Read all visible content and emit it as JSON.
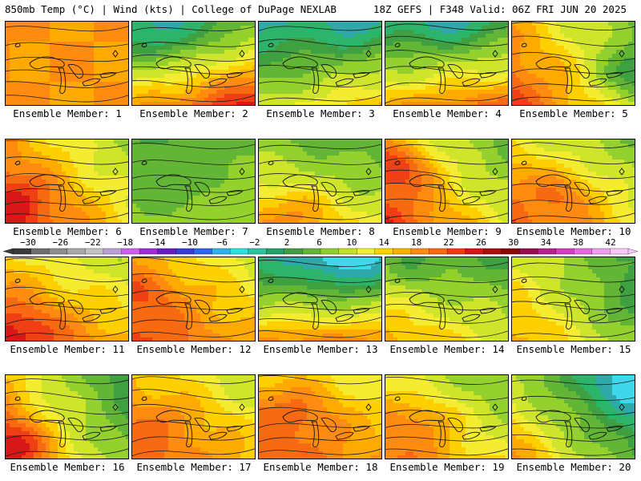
{
  "header": {
    "title_left": "850mb Temp (°C) | Wind (kts) | College of DuPage NEXLAB",
    "title_right": "18Z GEFS | F348 Valid: 06Z FRI JUN 20 2025"
  },
  "panels": [
    {
      "label": "Ensemble Member: 1",
      "base": 22,
      "grad": [
        0,
        0
      ],
      "bump": [
        0.5,
        0.5,
        0
      ]
    },
    {
      "label": "Ensemble Member: 2",
      "base": 16,
      "grad": [
        4,
        10
      ],
      "bump": [
        0.3,
        0.1,
        -6
      ]
    },
    {
      "label": "Ensemble Member: 3",
      "base": 10,
      "grad": [
        3,
        8
      ],
      "bump": [
        0.8,
        0.05,
        -6
      ]
    },
    {
      "label": "Ensemble Member: 4",
      "base": 14,
      "grad": [
        2,
        10
      ],
      "bump": [
        0.5,
        0.0,
        -6
      ]
    },
    {
      "label": "Ensemble Member: 5",
      "base": 18,
      "grad": [
        -6,
        3
      ],
      "bump": [
        0.95,
        0.6,
        -8
      ]
    },
    {
      "label": "Ensemble Member: 6",
      "base": 20,
      "grad": [
        -5,
        3
      ],
      "bump": [
        0.1,
        0.7,
        4
      ]
    },
    {
      "label": "Ensemble Member: 7",
      "base": 10,
      "grad": [
        1,
        2
      ],
      "bump": [
        0.35,
        0.5,
        -2
      ]
    },
    {
      "label": "Ensemble Member: 8",
      "base": 14,
      "grad": [
        -2,
        5
      ],
      "bump": [
        0.3,
        0.8,
        4
      ]
    },
    {
      "label": "Ensemble Member: 9",
      "base": 18,
      "grad": [
        -6,
        4
      ],
      "bump": [
        0.1,
        0.3,
        6
      ]
    },
    {
      "label": "Ensemble Member: 10",
      "base": 18,
      "grad": [
        -4,
        4
      ],
      "bump": [
        0.4,
        0.6,
        4
      ]
    },
    {
      "label": "Ensemble Member: 11",
      "base": 20,
      "grad": [
        -3,
        4
      ],
      "bump": [
        0.1,
        0.8,
        4
      ]
    },
    {
      "label": "Ensemble Member: 12",
      "base": 21,
      "grad": [
        -3,
        3
      ],
      "bump": [
        0.1,
        0.4,
        3
      ]
    },
    {
      "label": "Ensemble Member: 13",
      "base": 12,
      "grad": [
        0,
        12
      ],
      "bump": [
        0.7,
        0.05,
        -8
      ]
    },
    {
      "label": "Ensemble Member: 14",
      "base": 14,
      "grad": [
        -3,
        5
      ],
      "bump": [
        0.2,
        0.1,
        -4
      ]
    },
    {
      "label": "Ensemble Member: 15",
      "base": 14,
      "grad": [
        -5,
        3
      ],
      "bump": [
        0.9,
        0.5,
        -4
      ]
    },
    {
      "label": "Ensemble Member: 16",
      "base": 15,
      "grad": [
        -8,
        3
      ],
      "bump": [
        0.05,
        0.8,
        6
      ]
    },
    {
      "label": "Ensemble Member: 17",
      "base": 20,
      "grad": [
        -3,
        3
      ],
      "bump": [
        0.3,
        0.5,
        2
      ]
    },
    {
      "label": "Ensemble Member: 18",
      "base": 21,
      "grad": [
        -2,
        3
      ],
      "bump": [
        0.3,
        0.4,
        4
      ]
    },
    {
      "label": "Ensemble Member: 19",
      "base": 17,
      "grad": [
        -4,
        4
      ],
      "bump": [
        0.3,
        0.5,
        4
      ]
    },
    {
      "label": "Ensemble Member: 20",
      "base": 10,
      "grad": [
        -8,
        5
      ],
      "bump": [
        0.95,
        0.1,
        -8
      ]
    }
  ],
  "colorbar": {
    "tick_labels": [
      "−30",
      "−26",
      "−22",
      "−18",
      "−14",
      "−10",
      "−6",
      "−2",
      "2",
      "6",
      "10",
      "14",
      "18",
      "22",
      "26",
      "30",
      "34",
      "38",
      "42"
    ],
    "colors": [
      "#3a3a3a",
      "#6e6e6e",
      "#8e8e8e",
      "#a8a8a8",
      "#c3c3c3",
      "#b9a0d8",
      "#d05ef0",
      "#a22cd8",
      "#6a1ec2",
      "#3b3bd8",
      "#2d66ee",
      "#2fb0ef",
      "#2ee0e0",
      "#2cc4a0",
      "#23a26a",
      "#3ea040",
      "#63b535",
      "#8ecf2e",
      "#c4e02a",
      "#f0f03a",
      "#ffd200",
      "#ffb000",
      "#ff8c10",
      "#ff6a10",
      "#f23b10",
      "#d41616",
      "#b00d0d",
      "#8c0606",
      "#9a0c50",
      "#b8208c",
      "#d43dc3",
      "#e866e2",
      "#f39af2",
      "#f9c6f8"
    ]
  }
}
